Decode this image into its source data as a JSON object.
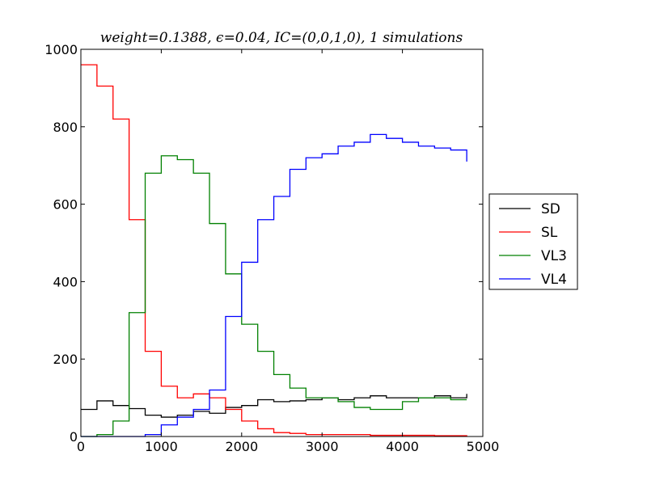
{
  "chart_data": {
    "type": "line",
    "title": "weight=0.1388, ϵ=0.04, IC=(0,0,1,0), 1 simulations",
    "xlabel": "",
    "ylabel": "",
    "xlim": [
      0,
      5000
    ],
    "ylim": [
      0,
      1000
    ],
    "x_ticks": [
      "0",
      "1000",
      "2000",
      "3000",
      "4000",
      "5000"
    ],
    "y_ticks": [
      "0",
      "200",
      "400",
      "600",
      "800",
      "1000"
    ],
    "grid": false,
    "legend_position": "right, outside plot",
    "x": [
      0,
      200,
      400,
      600,
      800,
      1000,
      1200,
      1400,
      1600,
      1800,
      2000,
      2200,
      2400,
      2600,
      2800,
      3000,
      3200,
      3400,
      3600,
      3800,
      4000,
      4200,
      4400,
      4600,
      4800
    ],
    "series": [
      {
        "name": "SD",
        "color": "#000000",
        "values": [
          70,
          92,
          80,
          72,
          55,
          50,
          55,
          65,
          60,
          75,
          80,
          95,
          90,
          92,
          95,
          100,
          95,
          100,
          105,
          100,
          100,
          100,
          105,
          100,
          110
        ]
      },
      {
        "name": "SL",
        "color": "#ff0000",
        "values": [
          960,
          905,
          820,
          560,
          220,
          130,
          100,
          110,
          100,
          70,
          40,
          20,
          10,
          8,
          5,
          5,
          5,
          5,
          3,
          3,
          3,
          3,
          2,
          2,
          0
        ]
      },
      {
        "name": "VL3",
        "color": "#008000",
        "values": [
          0,
          5,
          40,
          320,
          680,
          725,
          715,
          680,
          550,
          420,
          290,
          220,
          160,
          125,
          100,
          100,
          90,
          75,
          70,
          70,
          90,
          100,
          100,
          95,
          95
        ]
      },
      {
        "name": "VL4",
        "color": "#0000ff",
        "values": [
          0,
          0,
          0,
          0,
          5,
          30,
          50,
          70,
          120,
          310,
          450,
          560,
          620,
          690,
          720,
          730,
          750,
          760,
          780,
          770,
          760,
          750,
          745,
          740,
          710
        ]
      }
    ]
  }
}
